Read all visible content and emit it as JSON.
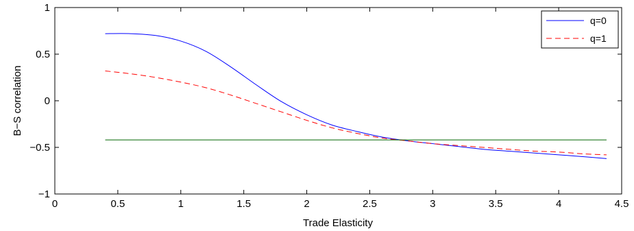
{
  "chart_data": {
    "type": "line",
    "title": "",
    "xlabel": "Trade Elasticity",
    "ylabel": "B−S correlation",
    "xlim": [
      0,
      4.5
    ],
    "ylim": [
      -1,
      1
    ],
    "xticks": [
      0,
      0.5,
      1,
      1.5,
      2,
      2.5,
      3,
      3.5,
      4,
      4.5
    ],
    "xtick_labels": [
      "0",
      "0.5",
      "1",
      "1.5",
      "2",
      "2.5",
      "3",
      "3.5",
      "4",
      "4.5"
    ],
    "yticks": [
      -1,
      -0.5,
      0,
      0.5,
      1
    ],
    "ytick_labels": [
      "−1",
      "−0.5",
      "0",
      "0.5",
      "1"
    ],
    "grid": false,
    "legend_position": "top-right",
    "series": [
      {
        "name": "q=0",
        "color": "#0000ff",
        "dash": "solid",
        "x": [
          0.4,
          0.6,
          0.8,
          1.0,
          1.2,
          1.4,
          1.6,
          1.8,
          2.0,
          2.2,
          2.4,
          2.6,
          2.8,
          3.0,
          3.2,
          3.4,
          3.6,
          3.8,
          4.0,
          4.2,
          4.38
        ],
        "y": [
          0.72,
          0.72,
          0.7,
          0.64,
          0.53,
          0.36,
          0.17,
          -0.01,
          -0.15,
          -0.26,
          -0.33,
          -0.39,
          -0.43,
          -0.46,
          -0.49,
          -0.52,
          -0.54,
          -0.56,
          -0.58,
          -0.6,
          -0.62
        ]
      },
      {
        "name": "q=1",
        "color": "#ff0000",
        "dash": "dashed",
        "x": [
          0.4,
          0.6,
          0.8,
          1.0,
          1.2,
          1.4,
          1.6,
          1.8,
          2.0,
          2.2,
          2.4,
          2.6,
          2.8,
          3.0,
          3.2,
          3.4,
          3.6,
          3.8,
          4.0,
          4.2,
          4.38
        ],
        "y": [
          0.32,
          0.29,
          0.25,
          0.2,
          0.14,
          0.06,
          -0.03,
          -0.12,
          -0.21,
          -0.29,
          -0.35,
          -0.4,
          -0.43,
          -0.46,
          -0.48,
          -0.5,
          -0.52,
          -0.54,
          -0.55,
          -0.57,
          -0.58
        ]
      },
      {
        "color": "#006400",
        "dash": "solid",
        "x": [
          0.4,
          4.38
        ],
        "y": [
          -0.42,
          -0.42
        ]
      }
    ]
  }
}
